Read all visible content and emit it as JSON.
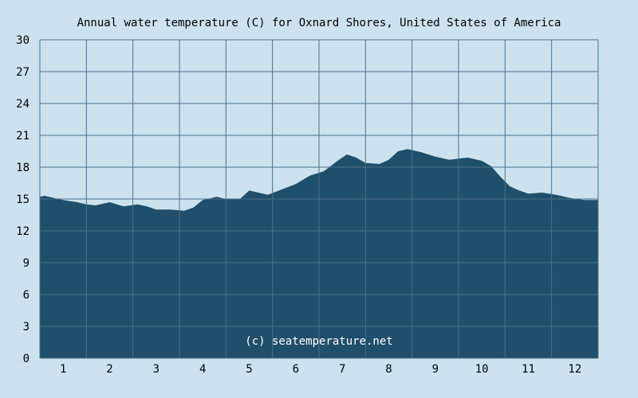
{
  "chart_data": {
    "type": "area",
    "title": "Annual water temperature (C) for Oxnard Shores, United States of America",
    "watermark": "(c) seatemperature.net",
    "xlabel": "",
    "ylabel": "",
    "x_ticks": [
      "1",
      "2",
      "3",
      "4",
      "5",
      "6",
      "7",
      "8",
      "9",
      "10",
      "11",
      "12"
    ],
    "y_ticks": [
      "0",
      "3",
      "6",
      "9",
      "12",
      "15",
      "18",
      "21",
      "24",
      "27",
      "30"
    ],
    "ylim": [
      0,
      30
    ],
    "xlim": [
      0.5,
      12.5
    ],
    "grid": true,
    "colors": {
      "fill": "#1f4f6a",
      "background": "#cce3ef",
      "grid": "#4c6f88"
    },
    "series": [
      {
        "x": [
          0.5,
          0.6,
          1.0,
          1.3,
          1.5,
          1.7,
          2.0,
          2.3,
          2.6,
          2.8,
          3.0,
          3.3,
          3.6,
          3.8,
          4.0,
          4.3,
          4.5,
          4.8,
          5.0,
          5.4,
          5.7,
          6.0,
          6.3,
          6.6,
          6.9,
          7.1,
          7.3,
          7.5,
          7.8,
          8.0,
          8.2,
          8.4,
          8.7,
          9.0,
          9.3,
          9.5,
          9.7,
          10.0,
          10.2,
          10.4,
          10.6,
          10.8,
          11.0,
          11.3,
          11.6,
          11.9,
          12.2,
          12.5
        ],
        "y": [
          15.2,
          15.3,
          14.9,
          14.7,
          14.5,
          14.4,
          14.7,
          14.3,
          14.5,
          14.3,
          14.0,
          14.0,
          13.9,
          14.2,
          14.9,
          15.2,
          15.0,
          15.0,
          15.8,
          15.4,
          15.9,
          16.4,
          17.2,
          17.6,
          18.6,
          19.2,
          18.9,
          18.4,
          18.3,
          18.7,
          19.5,
          19.7,
          19.4,
          19.0,
          18.7,
          18.8,
          18.9,
          18.6,
          18.1,
          17.1,
          16.2,
          15.8,
          15.5,
          15.6,
          15.4,
          15.1,
          14.9,
          14.9
        ]
      }
    ]
  }
}
